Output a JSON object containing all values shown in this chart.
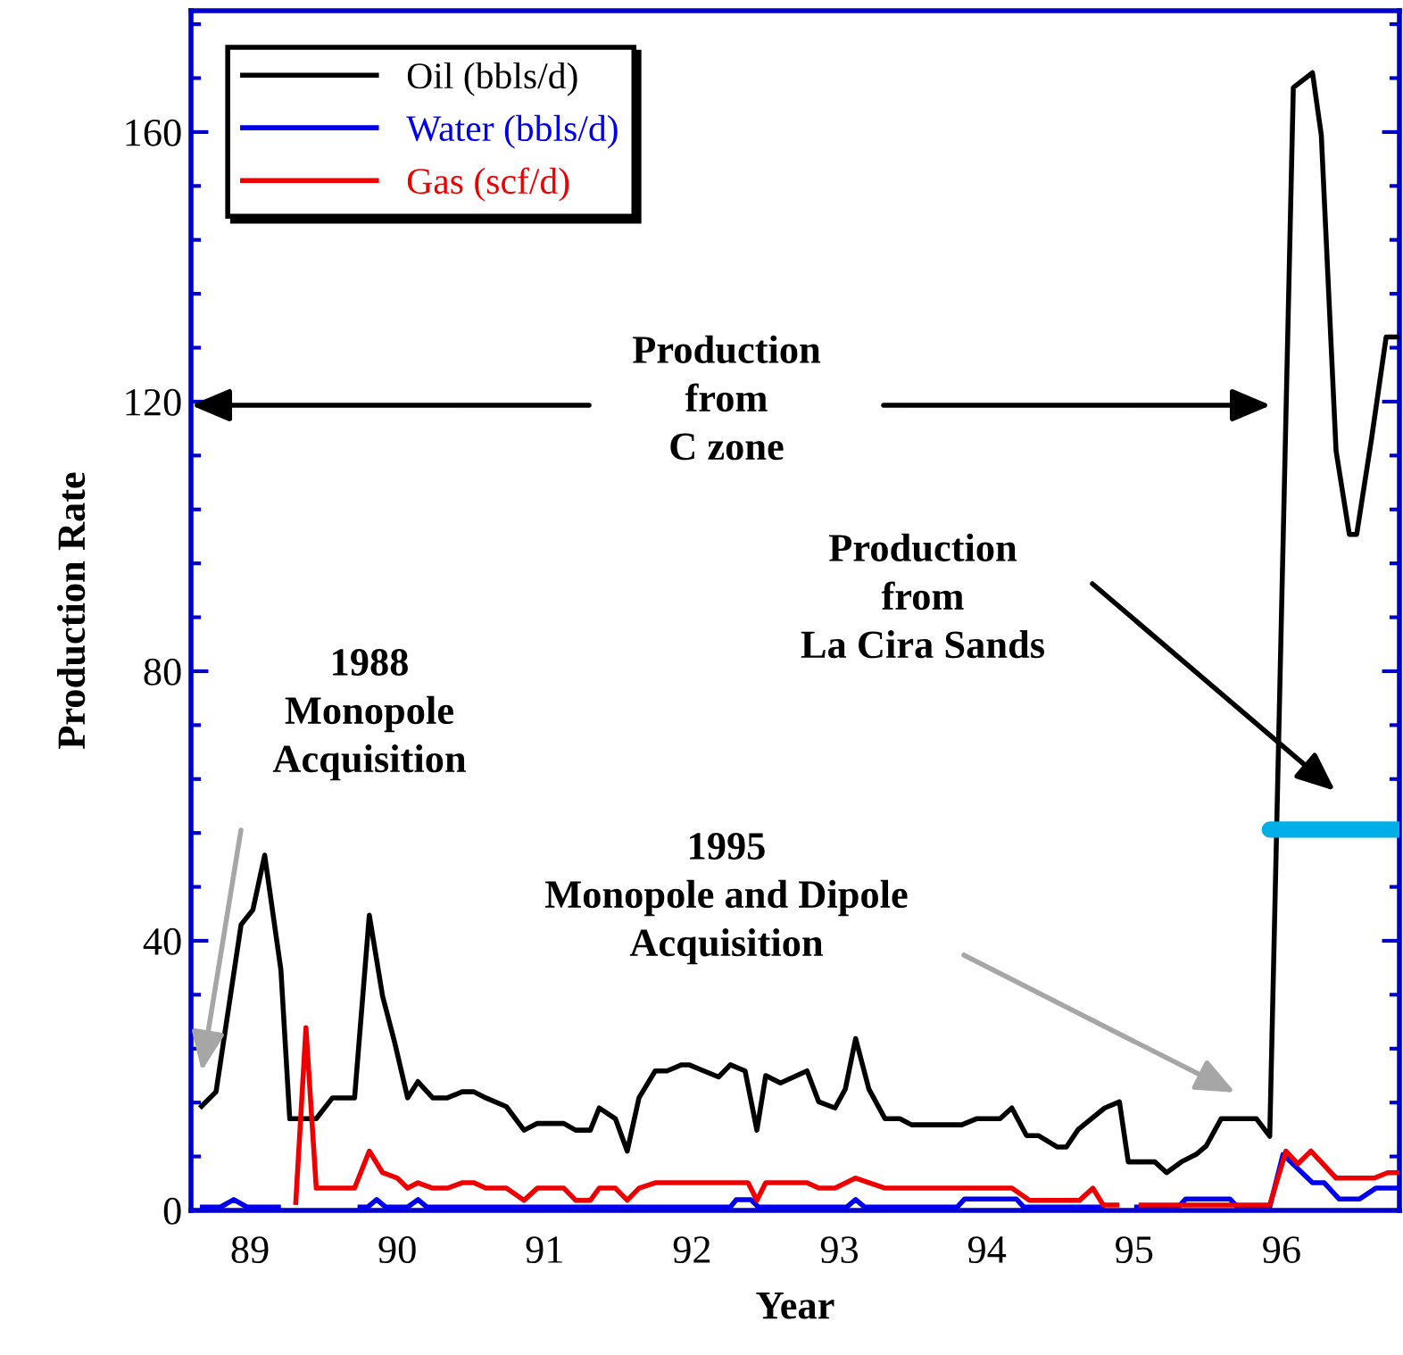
{
  "chart_data": {
    "type": "line",
    "xlabel": "Year",
    "ylabel": "Production Rate",
    "xlim": [
      88.6,
      96.8
    ],
    "xticks": [
      89,
      90,
      91,
      92,
      93,
      94,
      95,
      96
    ],
    "ylim": [
      0,
      178
    ],
    "yticks": [
      0,
      40,
      80,
      120,
      160
    ],
    "grid": false,
    "legend": "top left",
    "marker": "none",
    "line_style": "solid",
    "series": [
      {
        "name": "Oil (bbls/d)",
        "color": "#000000",
        "x": [
          88.66,
          88.77,
          88.94,
          89.02,
          89.1,
          89.21,
          89.27,
          89.45,
          89.56,
          89.71,
          89.81,
          89.9,
          89.98,
          90.07,
          90.14,
          90.24,
          90.34,
          90.44,
          90.52,
          90.6,
          90.74,
          90.86,
          90.95,
          91.13,
          91.21,
          91.31,
          91.37,
          91.48,
          91.56,
          91.64,
          91.75,
          91.83,
          91.93,
          91.98,
          92.08,
          92.18,
          92.26,
          92.36,
          92.44,
          92.5,
          92.6,
          92.78,
          92.86,
          92.97,
          93.04,
          93.11,
          93.2,
          93.31,
          93.41,
          93.49,
          93.83,
          93.93,
          94.09,
          94.17,
          94.27,
          94.35,
          94.48,
          94.54,
          94.62,
          94.8,
          94.9,
          94.96,
          95.14,
          95.22,
          95.32,
          95.42,
          95.49,
          95.59,
          95.83,
          95.92,
          96.08,
          96.21,
          96.27,
          96.37,
          96.46,
          96.51,
          96.61,
          96.71,
          96.8
        ],
        "values": [
          15.2,
          17.6,
          42.4,
          44.6,
          52.7,
          35.7,
          13.6,
          13.6,
          16.7,
          16.7,
          43.8,
          31.8,
          25.1,
          16.7,
          19.1,
          16.7,
          16.7,
          17.6,
          17.6,
          16.7,
          15.4,
          11.9,
          12.9,
          12.9,
          11.9,
          11.9,
          15.2,
          13.6,
          8.8,
          16.7,
          20.7,
          20.7,
          21.6,
          21.6,
          20.7,
          19.8,
          21.6,
          20.7,
          11.9,
          20.0,
          18.9,
          20.7,
          16.1,
          15.2,
          18.0,
          25.5,
          18.0,
          13.6,
          13.6,
          12.7,
          12.7,
          13.6,
          13.6,
          15.2,
          11.1,
          11.1,
          9.4,
          9.4,
          12.0,
          15.2,
          16.1,
          7.2,
          7.2,
          5.6,
          7.2,
          8.3,
          9.6,
          13.6,
          13.6,
          11.0,
          166.6,
          168.8,
          159.5,
          112.7,
          100.3,
          100.3,
          114.4,
          129.6,
          129.6
        ]
      },
      {
        "name": "Water (bbls/d)",
        "color": "#0000ee",
        "x": [
          88.66,
          88.8,
          88.89,
          88.98,
          89.21,
          89.3,
          89.73,
          89.8,
          89.86,
          89.92,
          90.07,
          90.14,
          90.2,
          92.26,
          92.3,
          92.4,
          92.45,
          93.05,
          93.11,
          93.17,
          93.8,
          93.85,
          94.2,
          94.25,
          94.8,
          94.9,
          95.0,
          95.3,
          95.35,
          95.65,
          95.7,
          95.92,
          96.01,
          96.21,
          96.29,
          96.39,
          96.53,
          96.64,
          96.8
        ],
        "values": [
          0.5,
          0.5,
          1.6,
          0.5,
          0.5,
          null,
          0.5,
          0.5,
          1.6,
          0.5,
          0.5,
          1.6,
          0.5,
          0.5,
          1.6,
          1.6,
          0.5,
          0.5,
          1.6,
          0.5,
          0.5,
          1.7,
          1.7,
          0.5,
          0.5,
          null,
          0.5,
          0.5,
          1.7,
          1.7,
          0.5,
          0.5,
          8.3,
          4.1,
          4.1,
          1.7,
          1.7,
          3.3,
          3.3
        ]
      },
      {
        "name": "Gas (scf/d)",
        "color": "#ee0000",
        "x": [
          89.31,
          89.38,
          89.45,
          89.71,
          89.81,
          89.9,
          90.0,
          90.07,
          90.14,
          90.24,
          90.34,
          90.44,
          90.52,
          90.6,
          90.74,
          90.86,
          90.95,
          91.13,
          91.21,
          91.31,
          91.37,
          91.48,
          91.56,
          91.64,
          91.75,
          92.38,
          92.44,
          92.5,
          92.78,
          92.86,
          92.97,
          93.11,
          93.31,
          94.17,
          94.29,
          94.63,
          94.72,
          94.79,
          94.9,
          94.95,
          95.03,
          95.92,
          96.03,
          96.11,
          96.2,
          96.37,
          96.63,
          96.72,
          96.8
        ],
        "values": [
          0.8,
          27.1,
          3.3,
          3.3,
          8.8,
          5.6,
          4.8,
          3.3,
          4.1,
          3.3,
          3.3,
          4.1,
          4.1,
          3.3,
          3.3,
          1.5,
          3.3,
          3.3,
          1.5,
          1.5,
          3.3,
          3.3,
          1.5,
          3.3,
          4.1,
          4.1,
          1.5,
          4.1,
          4.1,
          3.3,
          3.3,
          4.8,
          3.3,
          3.3,
          1.5,
          1.5,
          3.3,
          0.8,
          0.8,
          null,
          0.8,
          0.8,
          8.8,
          6.9,
          8.8,
          4.8,
          4.8,
          5.6,
          5.6
        ]
      },
      {
        "type": "line",
        "color": "#00aee8",
        "x": [
          95.92,
          96.8
        ],
        "values": [
          56.5,
          56.5
        ]
      }
    ],
    "annotations": [
      "Production\nfrom\nC zone",
      "Production\nfrom\nLa Cira Sands",
      "1988\nMonopole\nAcquisition",
      "1995\nMonopole and Dipole\nAcquisition"
    ]
  }
}
